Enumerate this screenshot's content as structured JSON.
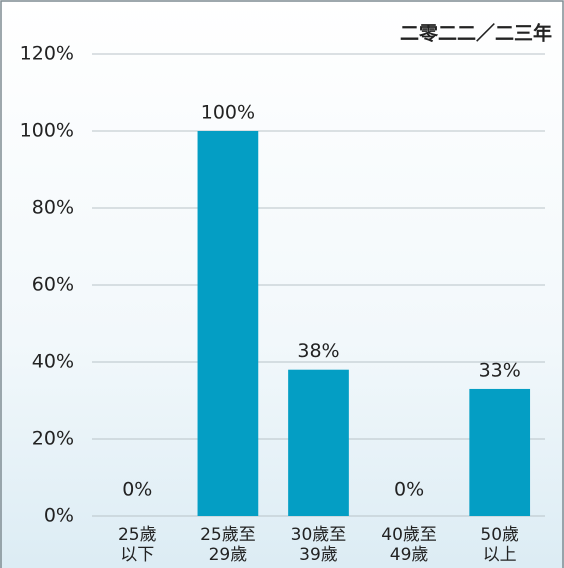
{
  "chart_data": {
    "type": "bar",
    "title": "二零二二／二三年",
    "categories": [
      [
        "25歲",
        "以下"
      ],
      [
        "25歲至",
        "29歲"
      ],
      [
        "30歲至",
        "39歲"
      ],
      [
        "40歲至",
        "49歲"
      ],
      [
        "50歲",
        "以上"
      ]
    ],
    "values": [
      0,
      100,
      38,
      0,
      33
    ],
    "value_labels": [
      "0%",
      "100%",
      "38%",
      "0%",
      "33%"
    ],
    "color": "#049ec4",
    "ylim": [
      0,
      120
    ],
    "yticks": [
      {
        "value": 0,
        "label": "0%"
      },
      {
        "value": 20,
        "label": "20%"
      },
      {
        "value": 40,
        "label": "40%"
      },
      {
        "value": 60,
        "label": "60%"
      },
      {
        "value": 80,
        "label": "80%"
      },
      {
        "value": 100,
        "label": "100%"
      },
      {
        "value": 120,
        "label": "120%"
      }
    ],
    "grid": true
  }
}
